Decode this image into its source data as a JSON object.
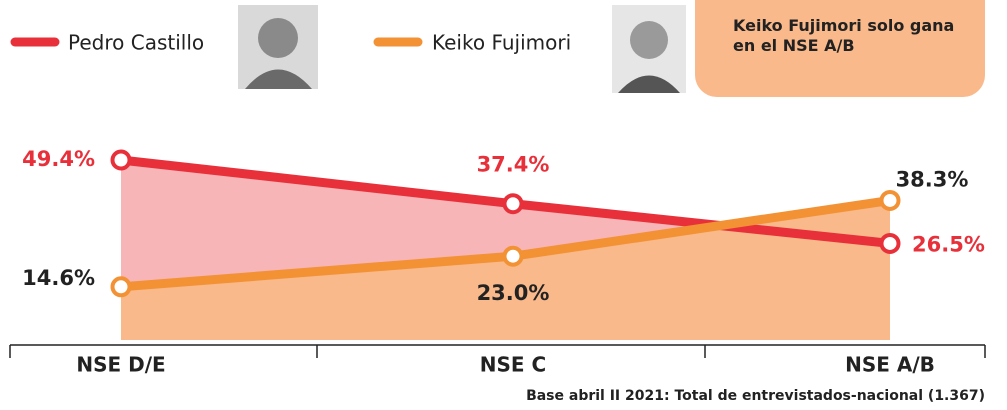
{
  "chart_data": {
    "type": "line",
    "categories": [
      "NSE D/E",
      "NSE C",
      "NSE A/B"
    ],
    "series": [
      {
        "name": "Pedro Castillo",
        "color": "#e8303a",
        "area_color": "#f7b5b7",
        "values": [
          49.4,
          37.4,
          26.5
        ],
        "value_labels": [
          "49.4%",
          "37.4%",
          "26.5%"
        ]
      },
      {
        "name": "Keiko Fujimori",
        "color": "#f29234",
        "area_color": "#f9b98a",
        "values": [
          14.6,
          23.0,
          38.3
        ],
        "value_labels": [
          "14.6%",
          "23.0%",
          "38.3%"
        ]
      }
    ],
    "annotation": "Keiko Fujimori solo gana en el NSE A/B",
    "footnote": "Base abril II 2021: Total de entrevistados-nacional (1.367)"
  }
}
